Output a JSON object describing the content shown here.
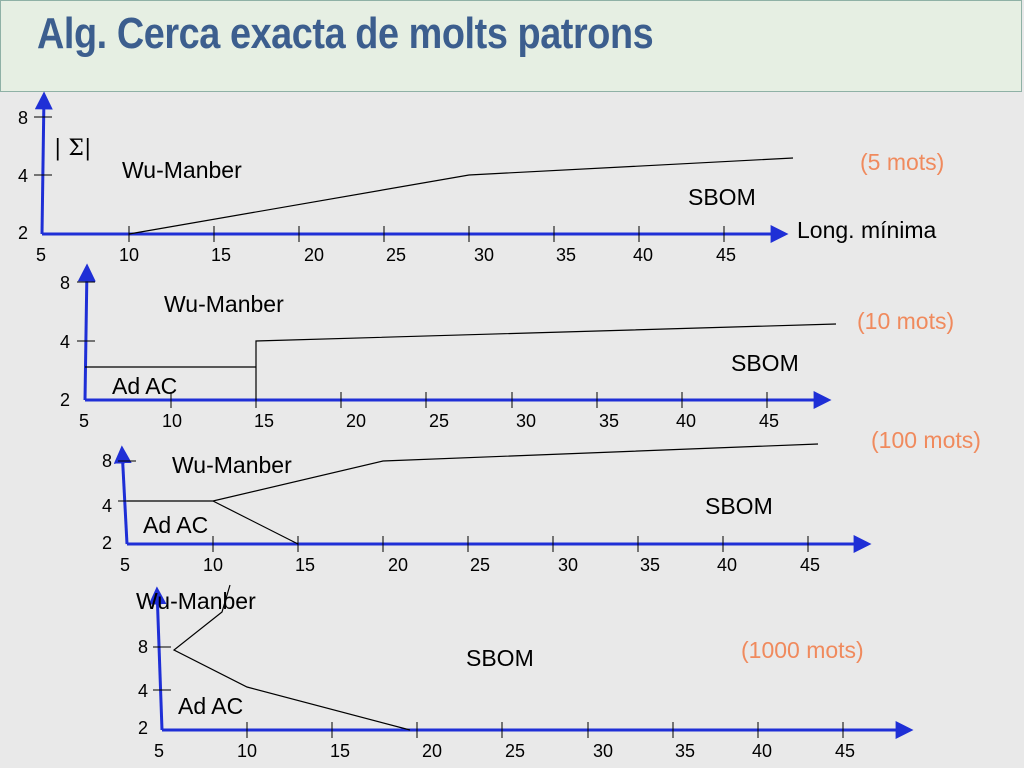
{
  "slide": {
    "title": "Alg. Cerca exacta de molts patrons"
  },
  "colors": {
    "axis": "#1f2fd6",
    "curve": "#000000",
    "title": "#3c5e8e",
    "count_label": "#f08a5d",
    "header_bg": "#e6efe3"
  },
  "x_ticks": [
    "5",
    "10",
    "15",
    "20",
    "25",
    "30",
    "35",
    "40",
    "45"
  ],
  "y_ticks": [
    "2",
    "4",
    "8"
  ],
  "panels": [
    {
      "pattern_count": "(5 mots)",
      "region_labels": [
        "Wu-Manber",
        "SBOM"
      ],
      "y_axis_label": "| Σ|",
      "x_axis_label": "Long. mínima"
    },
    {
      "pattern_count": "(10 mots)",
      "region_labels": [
        "Wu-Manber",
        "SBOM",
        "Ad AC"
      ]
    },
    {
      "pattern_count": "(100 mots)",
      "region_labels": [
        "Wu-Manber",
        "SBOM",
        "Ad AC"
      ]
    },
    {
      "pattern_count": "(1000 mots)",
      "region_labels": [
        "Wu-Manber",
        "SBOM",
        "Ad AC"
      ]
    }
  ]
}
